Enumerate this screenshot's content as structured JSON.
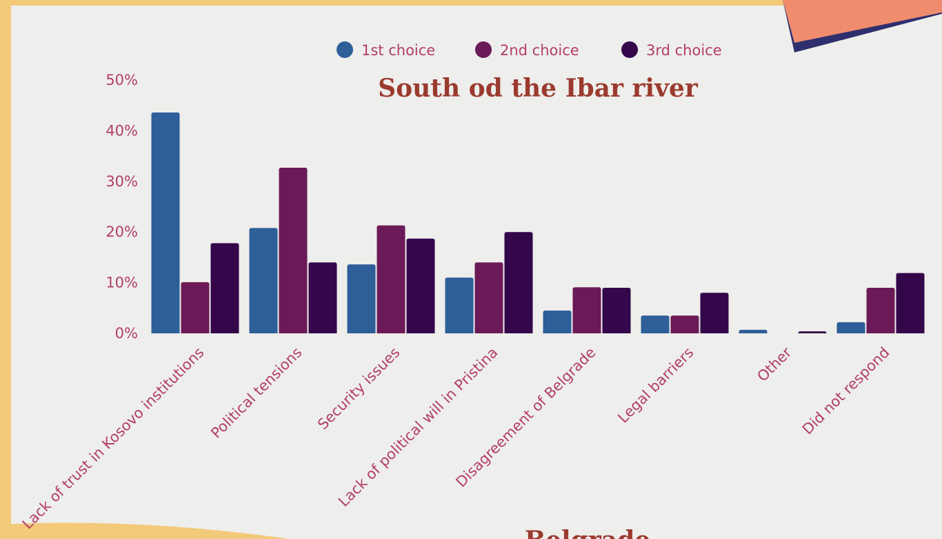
{
  "chart_data": {
    "type": "bar",
    "title": "South od the Ibar river",
    "categories": [
      "Lack of trust in Kosovo institutions",
      "Political tensions",
      "Security issues",
      "Lack of political will in Pristina",
      "Disagreement of Belgrade",
      "Legal barriers",
      "Other",
      "Did not respond"
    ],
    "series": [
      {
        "name": "1st choice",
        "color": "#2e5f99",
        "values": [
          43.6,
          20.8,
          13.6,
          11.0,
          4.5,
          3.5,
          0.7,
          2.2
        ]
      },
      {
        "name": "2nd choice",
        "color": "#6b1a57",
        "values": [
          10.1,
          32.7,
          21.3,
          14.0,
          9.1,
          3.5,
          0,
          9.0
        ]
      },
      {
        "name": "3rd choice",
        "color": "#33074a",
        "values": [
          17.8,
          14.0,
          18.7,
          20.0,
          9.0,
          8.0,
          0.4,
          11.9
        ]
      }
    ],
    "ylim": [
      0,
      50
    ],
    "yticks": [
      {
        "value": 0,
        "label": "0%"
      },
      {
        "value": 10,
        "label": "10%"
      },
      {
        "value": 20,
        "label": "20%"
      },
      {
        "value": 30,
        "label": "30%"
      },
      {
        "value": 40,
        "label": "40%"
      },
      {
        "value": 50,
        "label": "50%"
      }
    ],
    "grid": false,
    "legend": "top"
  },
  "next_section_title": "Belgrade"
}
